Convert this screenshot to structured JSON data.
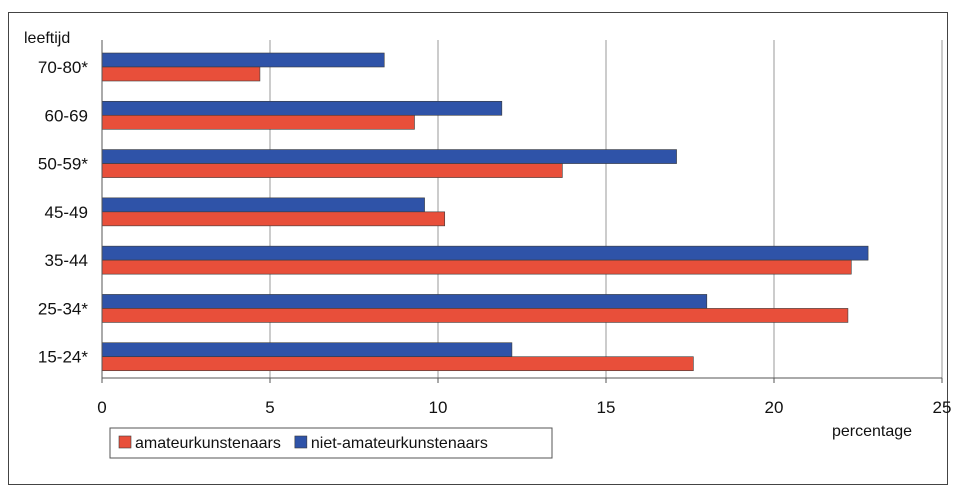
{
  "chart_data": {
    "type": "bar",
    "orientation": "horizontal",
    "ylabel": "leeftijd",
    "xlabel": "percentage",
    "categories": [
      "70-80*",
      "60-69",
      "50-59*",
      "45-49",
      "35-44",
      "25-34*",
      "15-24*"
    ],
    "series": [
      {
        "name": "niet-amateurkunstenaars",
        "color": "#2F53A8",
        "values": [
          8.4,
          11.9,
          17.1,
          9.6,
          22.8,
          18.0,
          12.2
        ]
      },
      {
        "name": "amateurkunstenaars",
        "color": "#E84F3A",
        "values": [
          4.7,
          9.3,
          13.7,
          10.2,
          22.3,
          22.2,
          17.6
        ]
      }
    ],
    "xlim": [
      0,
      25
    ],
    "xticks": [
      0,
      5,
      10,
      15,
      20,
      25
    ],
    "grid": "vertical",
    "legend": {
      "position": "bottom-left",
      "order": [
        "amateurkunstenaars",
        "niet-amateurkunstenaars"
      ]
    }
  }
}
